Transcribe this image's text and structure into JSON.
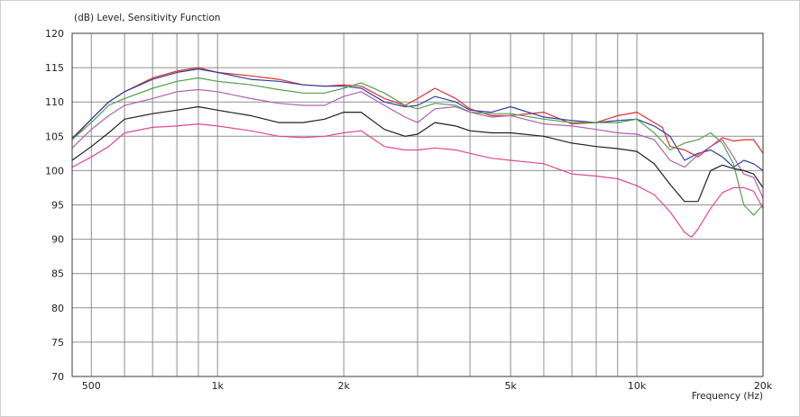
{
  "chart_data": {
    "type": "line",
    "title": "(dB)  Level, Sensitivity Function",
    "xlabel": "Frequency  (Hz)",
    "ylabel": "",
    "x_scale": "log",
    "xlim": [
      450,
      20000
    ],
    "ylim": [
      70,
      120
    ],
    "y_ticks": [
      70,
      75,
      80,
      85,
      90,
      95,
      100,
      105,
      110,
      115,
      120
    ],
    "x_tick_labels": [
      {
        "x": 500,
        "label": "500"
      },
      {
        "x": 1000,
        "label": "1k"
      },
      {
        "x": 2000,
        "label": "2k"
      },
      {
        "x": 5000,
        "label": "5k"
      },
      {
        "x": 10000,
        "label": "10k"
      },
      {
        "x": 20000,
        "label": "20k"
      }
    ],
    "x_gridlines": [
      500,
      600,
      700,
      800,
      900,
      1000,
      2000,
      3000,
      4000,
      5000,
      6000,
      7000,
      8000,
      9000,
      10000,
      20000
    ],
    "grid": true,
    "series": [
      {
        "color": "#e03030",
        "points": [
          [
            450,
            104.5
          ],
          [
            500,
            107.5
          ],
          [
            550,
            110
          ],
          [
            600,
            111.5
          ],
          [
            700,
            113.5
          ],
          [
            800,
            114.5
          ],
          [
            900,
            115
          ],
          [
            1000,
            114.3
          ],
          [
            1200,
            113.8
          ],
          [
            1400,
            113.3
          ],
          [
            1600,
            112.5
          ],
          [
            1800,
            112.3
          ],
          [
            2000,
            112.5
          ],
          [
            2200,
            112.3
          ],
          [
            2500,
            110.5
          ],
          [
            2800,
            109.5
          ],
          [
            3000,
            110.5
          ],
          [
            3300,
            112
          ],
          [
            3700,
            110.5
          ],
          [
            4000,
            109
          ],
          [
            4500,
            108
          ],
          [
            5000,
            108
          ],
          [
            6000,
            108.5
          ],
          [
            7000,
            106.8
          ],
          [
            8000,
            107
          ],
          [
            9000,
            108
          ],
          [
            10000,
            108.5
          ],
          [
            11000,
            107
          ],
          [
            11500,
            106.3
          ],
          [
            12000,
            103.5
          ],
          [
            13000,
            103
          ],
          [
            14000,
            102
          ],
          [
            15000,
            103.5
          ],
          [
            16000,
            104.8
          ],
          [
            17000,
            104.3
          ],
          [
            18000,
            104.5
          ],
          [
            19000,
            104.5
          ],
          [
            20000,
            102.5
          ]
        ]
      },
      {
        "color": "#3040a0",
        "points": [
          [
            450,
            104.7
          ],
          [
            500,
            107.5
          ],
          [
            550,
            110
          ],
          [
            600,
            111.5
          ],
          [
            700,
            113.3
          ],
          [
            800,
            114.3
          ],
          [
            900,
            114.8
          ],
          [
            1000,
            114.3
          ],
          [
            1200,
            113.3
          ],
          [
            1400,
            113
          ],
          [
            1600,
            112.5
          ],
          [
            1800,
            112.3
          ],
          [
            2000,
            112.3
          ],
          [
            2200,
            112
          ],
          [
            2500,
            110
          ],
          [
            2800,
            109.3
          ],
          [
            3000,
            109.5
          ],
          [
            3300,
            110.8
          ],
          [
            3700,
            110
          ],
          [
            4000,
            108.8
          ],
          [
            4500,
            108.5
          ],
          [
            5000,
            109.3
          ],
          [
            6000,
            107.8
          ],
          [
            7000,
            107.3
          ],
          [
            8000,
            107
          ],
          [
            9000,
            107.3
          ],
          [
            10000,
            107.5
          ],
          [
            11000,
            106.5
          ],
          [
            12000,
            105
          ],
          [
            13000,
            101.5
          ],
          [
            14000,
            102.5
          ],
          [
            15000,
            103
          ],
          [
            16000,
            102
          ],
          [
            17000,
            100.5
          ],
          [
            18000,
            101.5
          ],
          [
            19000,
            101
          ],
          [
            20000,
            100
          ]
        ]
      },
      {
        "color": "#50a050",
        "points": [
          [
            450,
            104.5
          ],
          [
            500,
            107
          ],
          [
            550,
            109.5
          ],
          [
            600,
            110.5
          ],
          [
            700,
            112
          ],
          [
            800,
            113
          ],
          [
            900,
            113.5
          ],
          [
            1000,
            113
          ],
          [
            1200,
            112.5
          ],
          [
            1400,
            111.8
          ],
          [
            1600,
            111.3
          ],
          [
            1800,
            111.3
          ],
          [
            2000,
            112
          ],
          [
            2200,
            112.8
          ],
          [
            2500,
            111.3
          ],
          [
            2800,
            109.5
          ],
          [
            3000,
            109
          ],
          [
            3300,
            109.8
          ],
          [
            3700,
            109.5
          ],
          [
            4000,
            108.5
          ],
          [
            4500,
            108.3
          ],
          [
            5000,
            108.3
          ],
          [
            6000,
            107.5
          ],
          [
            7000,
            107
          ],
          [
            8000,
            107
          ],
          [
            9000,
            107
          ],
          [
            10000,
            107.5
          ],
          [
            11000,
            105.5
          ],
          [
            12000,
            103
          ],
          [
            13000,
            104
          ],
          [
            14000,
            104.5
          ],
          [
            15000,
            105.5
          ],
          [
            16000,
            104
          ],
          [
            17000,
            101
          ],
          [
            18000,
            95
          ],
          [
            19000,
            93.5
          ],
          [
            20000,
            95
          ]
        ]
      },
      {
        "color": "#b060b0",
        "points": [
          [
            450,
            103.3
          ],
          [
            500,
            106
          ],
          [
            550,
            108
          ],
          [
            600,
            109.5
          ],
          [
            700,
            110.5
          ],
          [
            800,
            111.5
          ],
          [
            900,
            111.8
          ],
          [
            1000,
            111.5
          ],
          [
            1200,
            110.5
          ],
          [
            1400,
            109.8
          ],
          [
            1600,
            109.5
          ],
          [
            1800,
            109.5
          ],
          [
            2000,
            110.8
          ],
          [
            2200,
            111.5
          ],
          [
            2500,
            109.5
          ],
          [
            2800,
            107.8
          ],
          [
            3000,
            107
          ],
          [
            3300,
            109
          ],
          [
            3700,
            109.3
          ],
          [
            4000,
            108.5
          ],
          [
            4500,
            107.8
          ],
          [
            5000,
            108
          ],
          [
            6000,
            106.8
          ],
          [
            7000,
            106.5
          ],
          [
            8000,
            106
          ],
          [
            9000,
            105.5
          ],
          [
            10000,
            105.3
          ],
          [
            11000,
            104.5
          ],
          [
            12000,
            101.5
          ],
          [
            13000,
            100.5
          ],
          [
            14000,
            102.3
          ],
          [
            15000,
            103.5
          ],
          [
            16000,
            104.5
          ],
          [
            17000,
            102
          ],
          [
            18000,
            99.5
          ],
          [
            19000,
            99
          ],
          [
            20000,
            96
          ]
        ]
      },
      {
        "color": "#202020",
        "points": [
          [
            450,
            101.5
          ],
          [
            500,
            103.5
          ],
          [
            550,
            105.5
          ],
          [
            600,
            107.5
          ],
          [
            700,
            108.3
          ],
          [
            800,
            108.8
          ],
          [
            900,
            109.3
          ],
          [
            1000,
            108.8
          ],
          [
            1200,
            108
          ],
          [
            1400,
            107
          ],
          [
            1600,
            107
          ],
          [
            1800,
            107.5
          ],
          [
            2000,
            108.5
          ],
          [
            2200,
            108.5
          ],
          [
            2500,
            106
          ],
          [
            2800,
            105
          ],
          [
            3000,
            105.3
          ],
          [
            3300,
            107
          ],
          [
            3700,
            106.5
          ],
          [
            4000,
            105.8
          ],
          [
            4500,
            105.5
          ],
          [
            5000,
            105.5
          ],
          [
            6000,
            105
          ],
          [
            7000,
            104
          ],
          [
            8000,
            103.5
          ],
          [
            9000,
            103.2
          ],
          [
            10000,
            102.8
          ],
          [
            11000,
            101
          ],
          [
            12000,
            98
          ],
          [
            13000,
            95.5
          ],
          [
            14000,
            95.5
          ],
          [
            15000,
            100
          ],
          [
            16000,
            100.8
          ],
          [
            17000,
            100.3
          ],
          [
            18000,
            100
          ],
          [
            19000,
            99.5
          ],
          [
            20000,
            97.5
          ]
        ]
      },
      {
        "color": "#e04890",
        "points": [
          [
            450,
            100.5
          ],
          [
            500,
            102
          ],
          [
            550,
            103.5
          ],
          [
            600,
            105.5
          ],
          [
            700,
            106.3
          ],
          [
            800,
            106.5
          ],
          [
            900,
            106.8
          ],
          [
            1000,
            106.5
          ],
          [
            1200,
            105.8
          ],
          [
            1400,
            105
          ],
          [
            1600,
            104.8
          ],
          [
            1800,
            105
          ],
          [
            2000,
            105.5
          ],
          [
            2200,
            105.8
          ],
          [
            2500,
            103.5
          ],
          [
            2800,
            103
          ],
          [
            3000,
            103
          ],
          [
            3300,
            103.3
          ],
          [
            3700,
            103
          ],
          [
            4000,
            102.5
          ],
          [
            4500,
            101.8
          ],
          [
            5000,
            101.5
          ],
          [
            6000,
            101
          ],
          [
            7000,
            99.5
          ],
          [
            8000,
            99.2
          ],
          [
            9000,
            98.8
          ],
          [
            10000,
            97.8
          ],
          [
            11000,
            96.5
          ],
          [
            12000,
            94
          ],
          [
            13000,
            91
          ],
          [
            13500,
            90.3
          ],
          [
            14000,
            91.5
          ],
          [
            15000,
            94.5
          ],
          [
            16000,
            96.8
          ],
          [
            17000,
            97.5
          ],
          [
            18000,
            97.5
          ],
          [
            19000,
            97
          ],
          [
            20000,
            94.5
          ]
        ]
      }
    ]
  }
}
